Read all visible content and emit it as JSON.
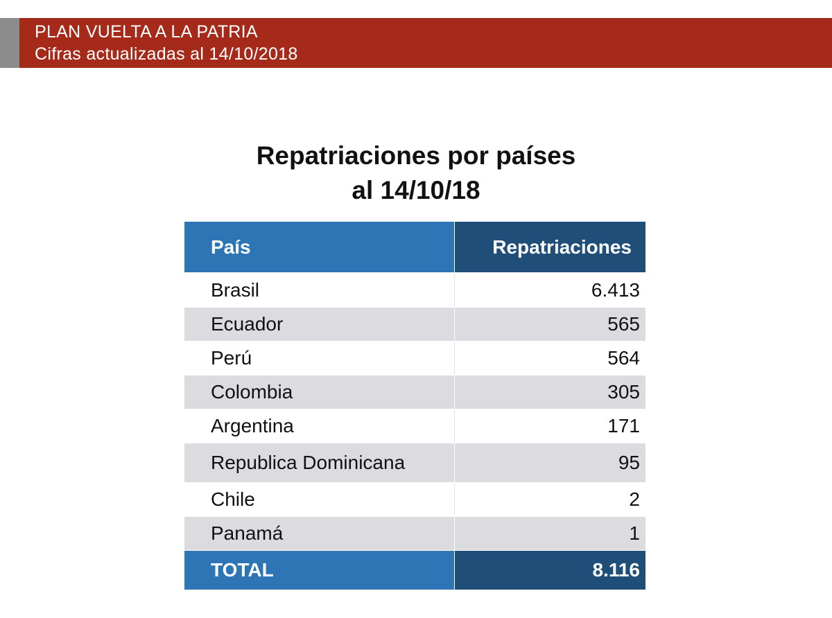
{
  "header": {
    "line1": "PLAN VUELTA A LA PATRIA",
    "line2": "Cifras actualizadas al 14/10/2018",
    "band_color": "#a52a1a"
  },
  "title": {
    "line1": "Repatriaciones por países",
    "line2": "al 14/10/18"
  },
  "table": {
    "columns": [
      "País",
      "Repatriaciones"
    ],
    "rows": [
      {
        "country": "Brasil",
        "value": "6.413"
      },
      {
        "country": "Ecuador",
        "value": "565"
      },
      {
        "country": "Perú",
        "value": "564"
      },
      {
        "country": "Colombia",
        "value": "305"
      },
      {
        "country": "Argentina",
        "value": "171"
      },
      {
        "country": "Republica Dominicana",
        "value": "95"
      },
      {
        "country": "Chile",
        "value": "2"
      },
      {
        "country": "Panamá",
        "value": "1"
      }
    ],
    "total": {
      "label": "TOTAL",
      "value": "8.116"
    },
    "header_color": "#2e75b6",
    "header_dark_color": "#1f4e79",
    "stripe_color": "#dcdce0"
  }
}
